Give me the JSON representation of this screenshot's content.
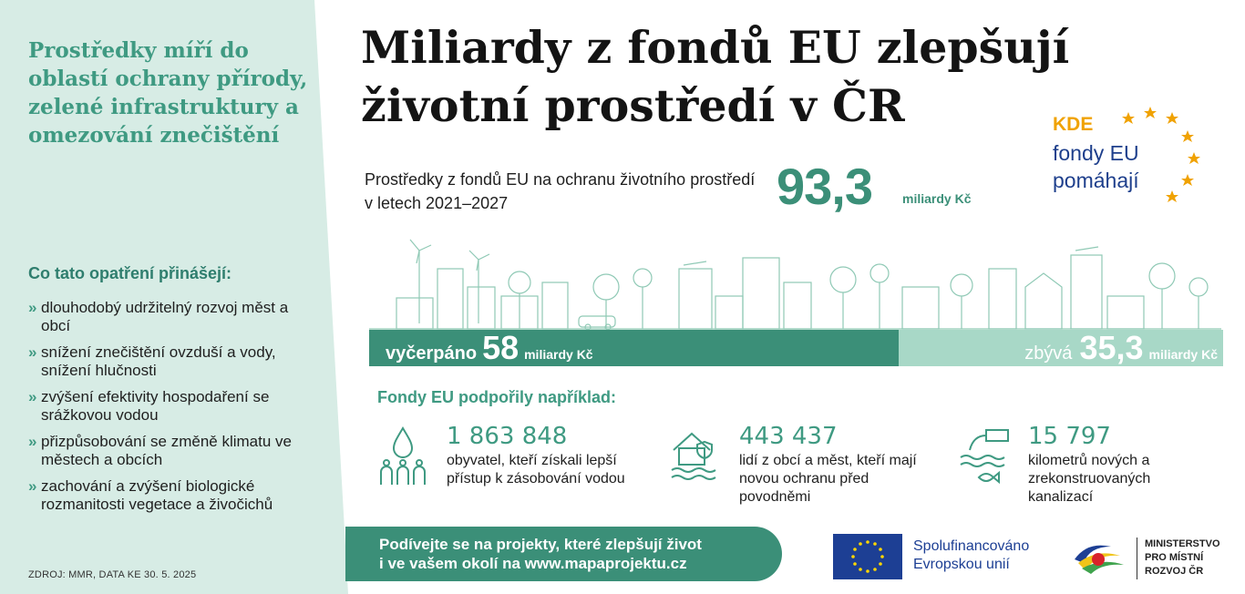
{
  "left_panel": {
    "heading": "Prostředky míří do oblastí ochrany přírody, zelené infrastruktury a omezování znečištění",
    "benefits_title": "Co tato opatření přinášejí:",
    "bullet_symbol": "»",
    "benefits": [
      "dlouhodobý udržitelný rozvoj měst a obcí",
      "snížení znečištění ovzduší a vody, snížení hlučnosti",
      "zvýšení efektivity hospodaření se srážkovou vodou",
      "přizpůsobování se změně klimatu ve městech a obcích",
      "zachování a zvýšení biologické rozmanitosti vegetace a živočichů"
    ],
    "source": "ZDROJ: MMR, DATA KE 30. 5. 2025"
  },
  "title": "Miliardy z fondů EU zlepšují životní prostředí v ČR",
  "kde_logo": {
    "line1": "KDE",
    "line2": "fondy EU",
    "line3": "pomáhají"
  },
  "funds": {
    "text": "Prostředky z fondů EU na ochranu životního prostředí v letech 2021–2027",
    "total": "93,3",
    "unit": "miliardy Kč"
  },
  "progress": {
    "used_label": "vyčerpáno",
    "used_value": "58",
    "used_unit": "miliardy Kč",
    "remaining_label": "zbývá",
    "remaining_value": "35,3",
    "remaining_unit": "miliardy Kč",
    "used_fraction": 0.62
  },
  "supported": {
    "heading": "Fondy EU podpořily například:",
    "stats": [
      {
        "icon": "water-drops-people-icon",
        "value": "1 863 848",
        "description": "obyvatel, kteří získali lepší přístup k zásobování vodou"
      },
      {
        "icon": "flood-protected-house-icon",
        "value": "443 437",
        "description": "lidí z obcí a měst, kteří mají novou ochranu před povodněmi"
      },
      {
        "icon": "sewer-pipe-fish-icon",
        "value": "15 797",
        "description": "kilometrů nových a zrekonstruovaných kanalizací"
      }
    ]
  },
  "cta": {
    "line1": "Podívejte se na projekty, které zlepšují život",
    "line2": "i ve vašem okolí na www.mapaprojektu.cz"
  },
  "eu_logo": {
    "line1": "Spolufinancováno",
    "line2": "Evropskou unií"
  },
  "mmr_logo": {
    "line1": "MINISTERSTVO",
    "line2": "PRO MÍSTNÍ",
    "line3": "ROZVOJ ČR"
  },
  "colors": {
    "primary_green": "#3b8f78",
    "light_green": "#a8d8c7",
    "panel_bg": "#d7ece5",
    "eu_blue": "#1d3f94",
    "kde_orange": "#f0a202"
  }
}
